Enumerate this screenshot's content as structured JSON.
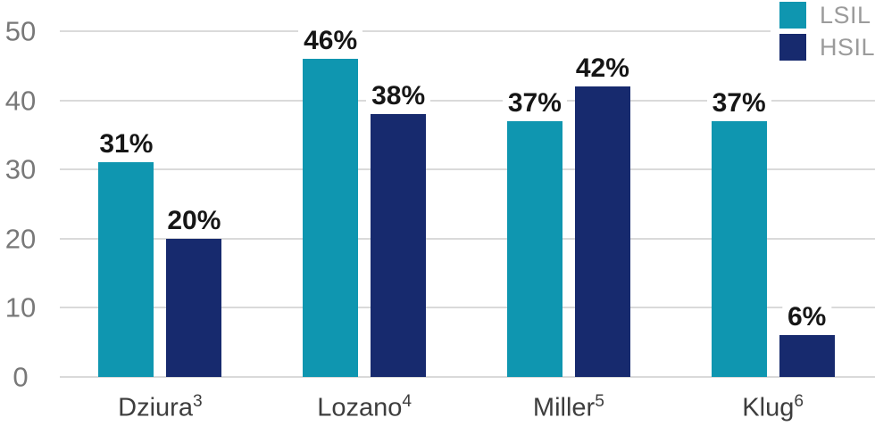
{
  "chart_data": {
    "type": "bar",
    "title": "",
    "categories": [
      {
        "label": "Dziura",
        "superscript": "3"
      },
      {
        "label": "Lozano",
        "superscript": "4"
      },
      {
        "label": "Miller",
        "superscript": "5"
      },
      {
        "label": "Klug",
        "superscript": "6"
      }
    ],
    "series": [
      {
        "name": "LSIL",
        "color": "#0F96B0",
        "values": [
          31,
          46,
          37,
          37
        ],
        "value_labels": [
          "31%",
          "46%",
          "37%",
          "37%"
        ]
      },
      {
        "name": "HSIL",
        "color": "#172A6E",
        "values": [
          20,
          38,
          42,
          6
        ],
        "value_labels": [
          "20%",
          "38%",
          "42%",
          "6%"
        ]
      }
    ],
    "ylim": [
      0,
      50
    ],
    "yticks": [
      "0",
      "10",
      "20",
      "30",
      "40",
      "50"
    ],
    "xlabel": "",
    "ylabel": "",
    "grid": true,
    "legend_position": "top-right"
  },
  "colors": {
    "lsil": "#0F96B0",
    "hsil": "#172A6E",
    "gridline": "#DADADA",
    "axis_text": "#787878",
    "legend_text": "#9B9B9B",
    "data_label": "#161616",
    "category_text": "#3D3D3D",
    "background": "#FFFFFF"
  }
}
